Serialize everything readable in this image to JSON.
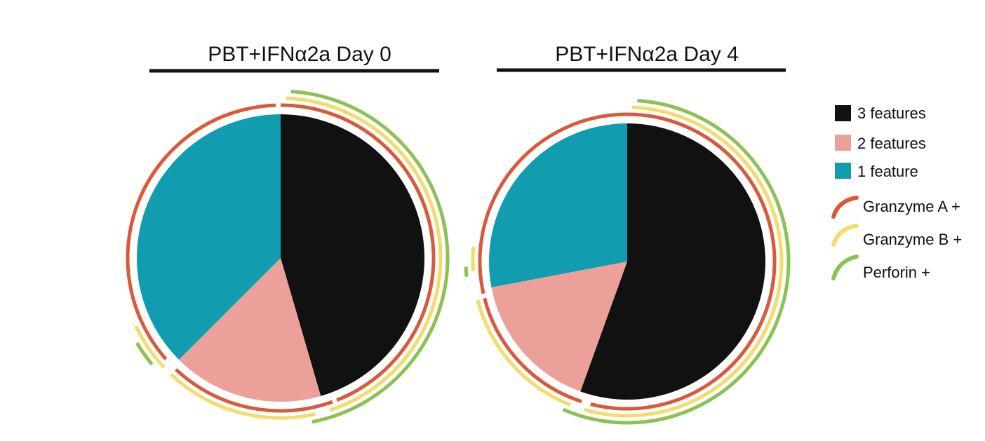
{
  "colors": {
    "three": "#111111",
    "two": "#eba09a",
    "one": "#119caf",
    "granzyme_a": "#d9593b",
    "granzyme_b": "#f3dc6c",
    "perforin": "#8cc154"
  },
  "legend": {
    "pie_items": [
      {
        "label": "3 features",
        "color_key": "three"
      },
      {
        "label": "2 features",
        "color_key": "two"
      },
      {
        "label": "1 feature",
        "color_key": "one"
      }
    ],
    "arc_items": [
      {
        "label": "Granzyme A +",
        "color_key": "granzyme_a"
      },
      {
        "label": "Granzyme B +",
        "color_key": "granzyme_b"
      },
      {
        "label": "Perforin +",
        "color_key": "perforin"
      }
    ]
  },
  "chart_data": [
    {
      "type": "pie",
      "title": "PBT+IFNα2a Day 0",
      "slices": [
        {
          "label": "3 features",
          "value": 45.5
        },
        {
          "label": "2 features",
          "value": 17.0
        },
        {
          "label": "1 feature",
          "value": 37.5
        }
      ],
      "arcs": [
        {
          "marker": "Granzyme A +",
          "segments": [
            [
              0,
              44.0
            ],
            [
              44.5,
              62.0
            ],
            [
              63.5,
              99.5
            ]
          ]
        },
        {
          "marker": "Granzyme B +",
          "segments": [
            [
              0.5,
              45.0
            ],
            [
              46.5,
              62.0
            ],
            [
              63.0,
              68.0
            ]
          ]
        },
        {
          "marker": "Perforin +",
          "segments": [
            [
              1.0,
              47.0
            ],
            [
              64.0,
              66.5
            ]
          ]
        }
      ]
    },
    {
      "type": "pie",
      "title": "PBT+IFNα2a Day 4",
      "slices": [
        {
          "label": "3 features",
          "value": 55.5
        },
        {
          "label": "2 features",
          "value": 16.5
        },
        {
          "label": "1 feature",
          "value": 28.0
        }
      ],
      "arcs": [
        {
          "marker": "Granzyme A +",
          "segments": [
            [
              0,
              54.0
            ],
            [
              55.0,
              71.0
            ],
            [
              71.5,
              100
            ]
          ]
        },
        {
          "marker": "Granzyme B +",
          "segments": [
            [
              0.5,
              54.5
            ],
            [
              56.0,
              71.0
            ],
            [
              74.0,
              76.5
            ]
          ]
        },
        {
          "marker": "Perforin +",
          "segments": [
            [
              1.0,
              56.5
            ],
            [
              73.5,
              74.5
            ]
          ]
        }
      ]
    }
  ]
}
